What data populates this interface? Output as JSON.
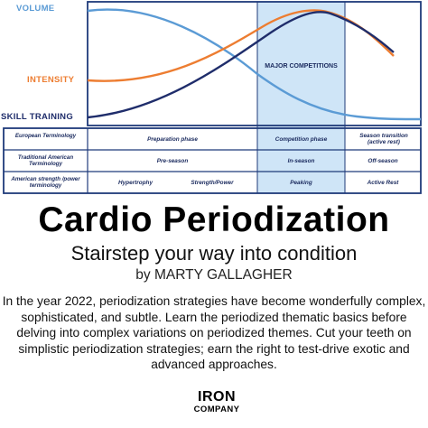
{
  "diagram": {
    "labels": {
      "volume": "VOLUME",
      "intensity": "INTENSITY",
      "skill": "SKILL TRAINING",
      "major": "MAJOR COMPETITIONS"
    },
    "colors": {
      "volume": "#5b9bd5",
      "intensity": "#ed7d31",
      "skill": "#1f2d6b",
      "highlight": "#cfe5f7",
      "grid": "#1f3a7a"
    },
    "rows": [
      {
        "label": "European Terminology",
        "cells": [
          "Preparation phase",
          "Competition phase",
          "Season transition (active rest)"
        ]
      },
      {
        "label": "Traditional American Terminology",
        "cells": [
          "Pre-season",
          "In-season",
          "Off-season"
        ]
      },
      {
        "label": "American strength /power terminology",
        "cells": [
          "Hypertrophy",
          "Strength/Power",
          "Peaking",
          "Active Rest"
        ]
      }
    ]
  },
  "article": {
    "title": "Cardio Periodization",
    "subtitle": "Stairstep your way into condition",
    "byline": "by MARTY GALLAGHER",
    "body": "In the year 2022, periodization strategies have become wonderfully complex, sophisticated, and subtle. Learn the periodized thematic basics before delving into complex variations on periodized themes. Cut your teeth on simplistic periodization strategies; earn the right to test-drive exotic and advanced approaches.",
    "logo_line1": "IRON",
    "logo_line2": "COMPANY"
  }
}
